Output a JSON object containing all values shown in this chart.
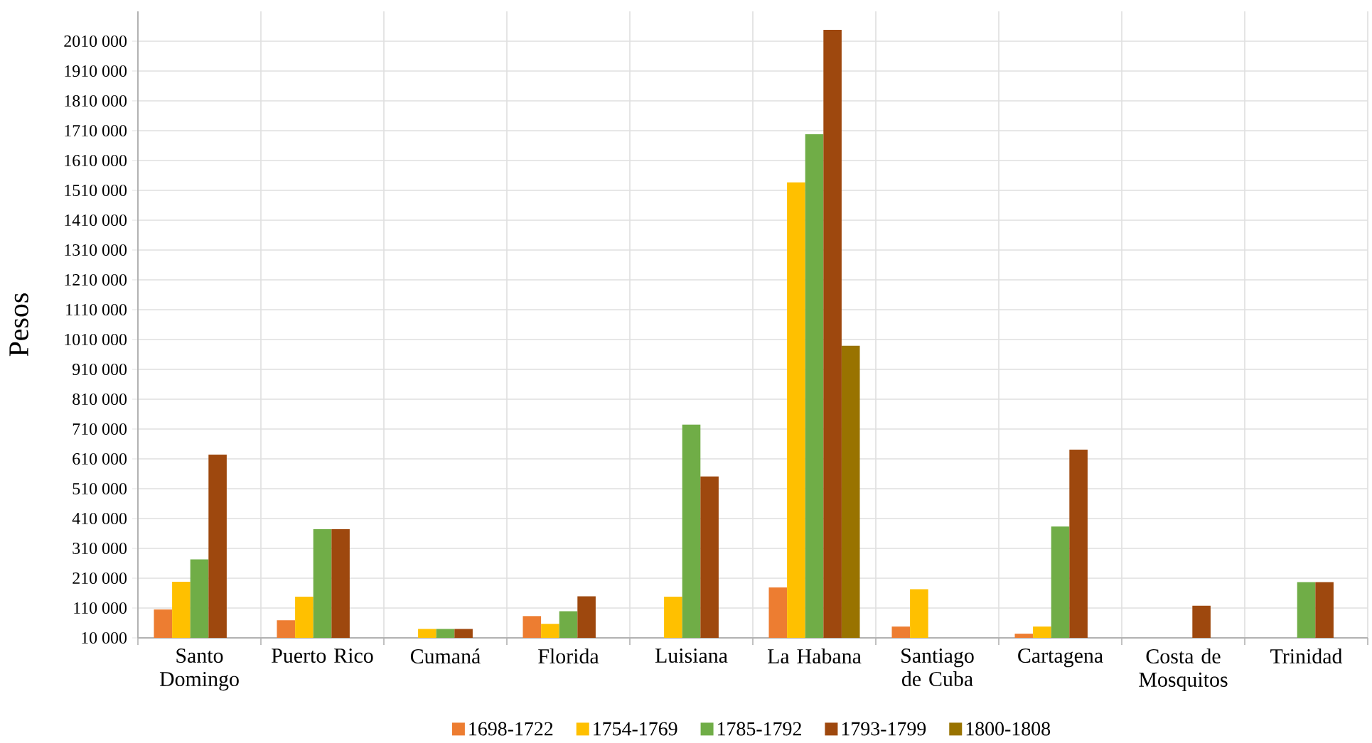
{
  "chart_data": {
    "type": "bar",
    "ylabel": "Pesos",
    "categories": [
      "Santo Domingo",
      "Puerto Rico",
      "Cumaná",
      "Florida",
      "Luisiana",
      "La Habana",
      "Santiago de Cuba",
      "Cartagena",
      "Costa de Mosquitos",
      "Trinidad"
    ],
    "series": [
      {
        "name": "1698-1722",
        "color": "#ed7d31",
        "values": [
          105000,
          69000,
          null,
          83000,
          null,
          179000,
          48000,
          24000,
          null,
          null
        ]
      },
      {
        "name": "1754-1769",
        "color": "#ffc000",
        "values": [
          198000,
          148000,
          40000,
          57000,
          148000,
          1537000,
          173000,
          48000,
          null,
          null
        ]
      },
      {
        "name": "1785-1792",
        "color": "#70ad47",
        "values": [
          273000,
          374000,
          40000,
          99000,
          725000,
          1698000,
          null,
          383000,
          null,
          197000
        ]
      },
      {
        "name": "1793-1799",
        "color": "#9e480e",
        "values": [
          624000,
          374000,
          40000,
          149000,
          551000,
          2048000,
          null,
          641000,
          118000,
          197000
        ]
      },
      {
        "name": "1800-1808",
        "color": "#997300",
        "values": [
          null,
          null,
          null,
          null,
          null,
          989000,
          null,
          null,
          null,
          null
        ]
      }
    ],
    "ylim": [
      10000,
      2110000
    ],
    "yticks": [
      {
        "value": 10000,
        "label": "10 000"
      },
      {
        "value": 110000,
        "label": "110 000"
      },
      {
        "value": 210000,
        "label": "210 000"
      },
      {
        "value": 310000,
        "label": "310 000"
      },
      {
        "value": 410000,
        "label": "410 000"
      },
      {
        "value": 510000,
        "label": "510 000"
      },
      {
        "value": 610000,
        "label": "610 000"
      },
      {
        "value": 710000,
        "label": "710 000"
      },
      {
        "value": 810000,
        "label": "810 000"
      },
      {
        "value": 910000,
        "label": "910 000"
      },
      {
        "value": 1010000,
        "label": "1010 000"
      },
      {
        "value": 1110000,
        "label": "1110 000"
      },
      {
        "value": 1210000,
        "label": "1210 000"
      },
      {
        "value": 1310000,
        "label": "1310 000"
      },
      {
        "value": 1410000,
        "label": "1410 000"
      },
      {
        "value": 1510000,
        "label": "1510 000"
      },
      {
        "value": 1610000,
        "label": "1610 000"
      },
      {
        "value": 1710000,
        "label": "1710 000"
      },
      {
        "value": 1810000,
        "label": "1810 000"
      },
      {
        "value": 1910000,
        "label": "1910 000"
      },
      {
        "value": 2010000,
        "label": "2010 000"
      }
    ],
    "grid": true,
    "legend": "bottom"
  }
}
